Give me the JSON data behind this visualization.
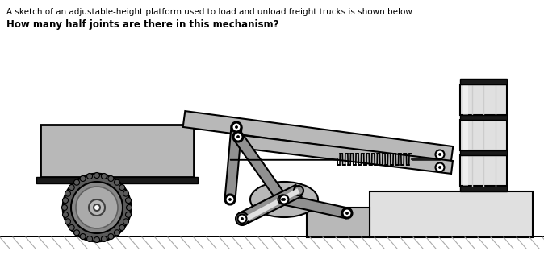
{
  "title_line1": "A sketch of an adjustable-height platform used to load and unload freight trucks is shown below.",
  "title_line2": "How many half joints are there in this mechanism?",
  "bg_color": "#ffffff",
  "ground_color": "#c8c8c8",
  "dark_color": "#1a1a1a",
  "medium_gray": "#909090",
  "light_gray": "#b8b8b8",
  "very_light_gray": "#e0e0e0",
  "pin_color": "#606060",
  "wheel_dark": "#5a5a5a",
  "wheel_mid": "#888888",
  "wheel_light": "#aaaaaa"
}
